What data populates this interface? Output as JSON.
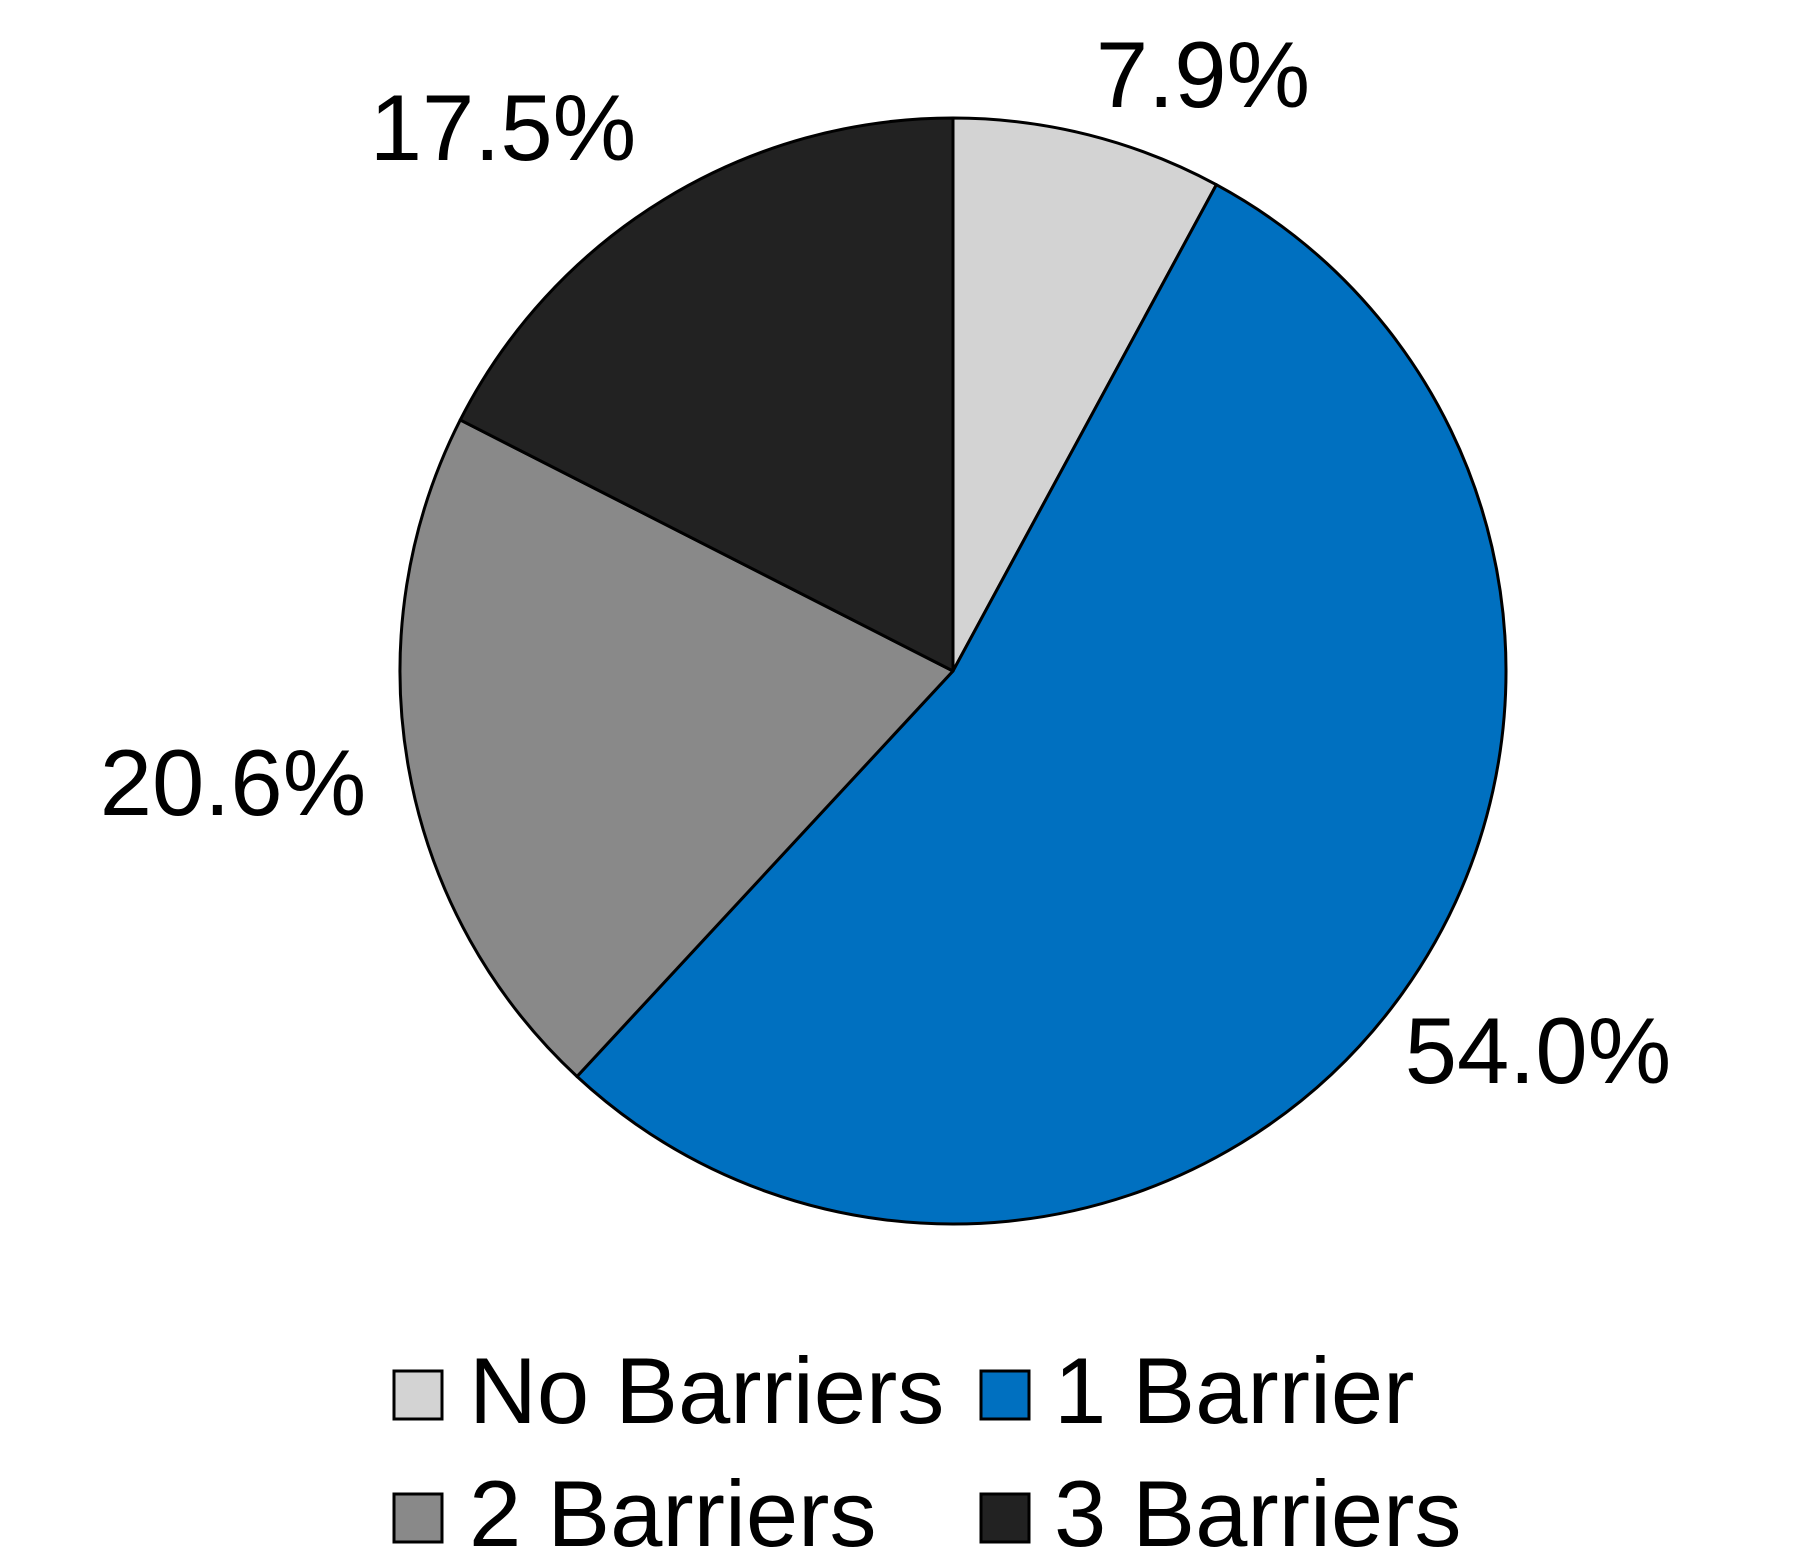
{
  "chart_data": {
    "type": "pie",
    "title": "",
    "categories": [
      "No Barriers",
      "1 Barrier",
      "2 Barriers",
      "3 Barriers"
    ],
    "values": [
      7.9,
      54.0,
      20.6,
      17.5
    ],
    "value_labels": [
      "7.9%",
      "54.0%",
      "20.6%",
      "17.5%"
    ],
    "colors": [
      "#d3d3d3",
      "#0070c0",
      "#898989",
      "#222222"
    ],
    "start_angle": "12 o'clock",
    "direction": "clockwise",
    "legend": {
      "placement": "bottom",
      "columns": 2,
      "entries": [
        "No Barriers",
        "1 Barrier",
        "2 Barriers",
        "3 Barriers"
      ]
    }
  }
}
